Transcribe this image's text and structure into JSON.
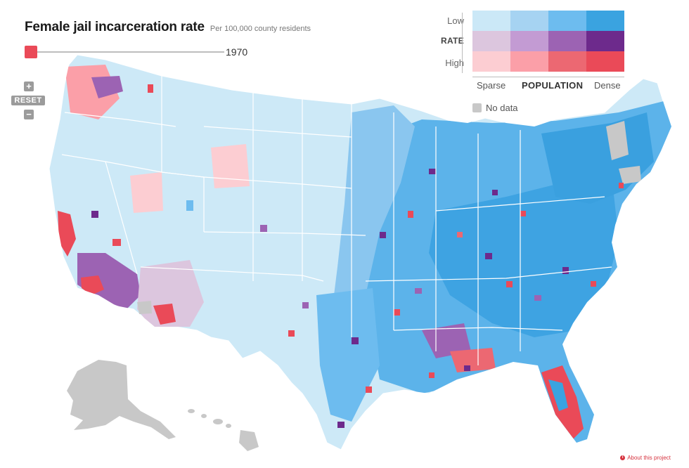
{
  "header": {
    "title": "Female jail incarceration rate",
    "subtitle": "Per 100,000 county residents"
  },
  "timeline": {
    "year": "1970",
    "position": 0.0
  },
  "zoom": {
    "in_label": "+",
    "reset_label": "RESET",
    "out_label": "−"
  },
  "legend": {
    "rate_low": "Low",
    "rate_title": "RATE",
    "rate_high": "High",
    "pop_sparse": "Sparse",
    "pop_title": "POPULATION",
    "pop_dense": "Dense",
    "no_data": "No data",
    "colors": [
      [
        "#cbe8f7",
        "#a6d3f2",
        "#6dbcef",
        "#3aa3e0"
      ],
      [
        "#dcc6de",
        "#c39bd3",
        "#9c63b3",
        "#6d2a8c"
      ],
      [
        "#fccdd2",
        "#fb9fa8",
        "#ec6872",
        "#ea4a58"
      ]
    ],
    "no_data_color": "#c8c8c8"
  },
  "footer": {
    "about_label": "About this project"
  }
}
